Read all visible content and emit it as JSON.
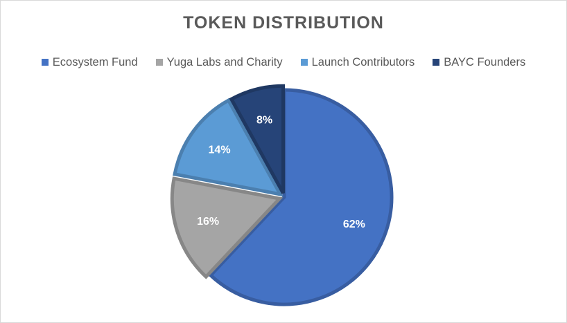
{
  "chart_data": {
    "type": "pie",
    "title": "TOKEN DISTRIBUTION",
    "categories": [
      "Ecosystem Fund",
      "Yuga Labs and Charity",
      "Launch Contributors",
      "BAYC Founders"
    ],
    "values": [
      62,
      16,
      14,
      8
    ],
    "data_labels": [
      "62%",
      "16%",
      "14%",
      "8%"
    ],
    "colors": [
      "#4472C4",
      "#A5A5A5",
      "#5B9BD5",
      "#264478"
    ],
    "legend_position": "top",
    "start_angle": "12 o'clock, clockwise"
  }
}
